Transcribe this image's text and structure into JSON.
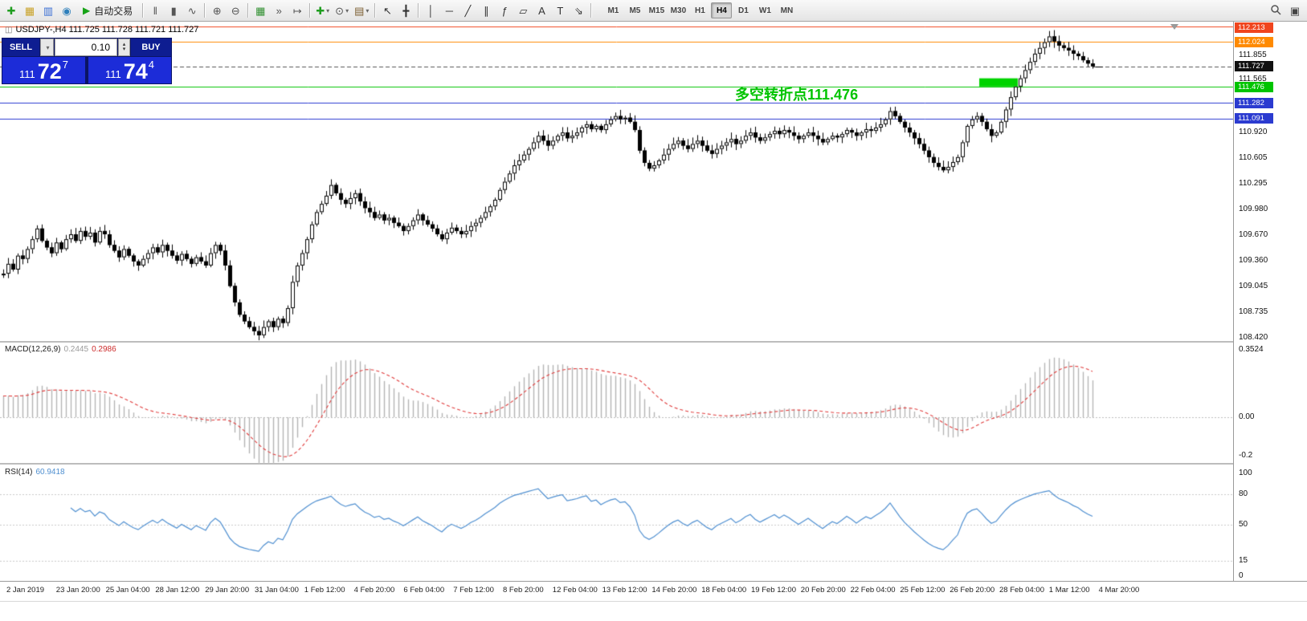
{
  "toolbar": {
    "autotrade_label": "自动交易",
    "groups": [
      {
        "items": [
          {
            "name": "new-order-button",
            "glyph": "✚",
            "color": "#1f9d1f"
          },
          {
            "name": "charts-button",
            "glyph": "▦",
            "color": "#c9a227"
          },
          {
            "name": "market-watch-button",
            "glyph": "▥",
            "color": "#3b6fd4"
          },
          {
            "name": "navigator-button",
            "glyph": "◉",
            "color": "#2e7fbb"
          },
          {
            "name": "autotrading-button",
            "type": "autotrade",
            "glyph": "▶",
            "color": "#17a317"
          }
        ]
      },
      {
        "items": [
          {
            "name": "bar-chart-button",
            "glyph": "‖",
            "color": "#555555"
          },
          {
            "name": "candlestick-chart-button",
            "glyph": "▮",
            "color": "#555555"
          },
          {
            "name": "line-chart-button",
            "glyph": "∿",
            "color": "#555555"
          }
        ]
      },
      {
        "items": [
          {
            "name": "zoom-in-button",
            "glyph": "⊕",
            "color": "#555555"
          },
          {
            "name": "zoom-out-button",
            "glyph": "⊖",
            "color": "#555555"
          }
        ]
      },
      {
        "items": [
          {
            "name": "tile-windows-button",
            "glyph": "▦",
            "color": "#2f8f2f"
          },
          {
            "name": "auto-scroll-button",
            "glyph": "»",
            "color": "#555555"
          },
          {
            "name": "chart-shift-button",
            "glyph": "↦",
            "color": "#555555"
          }
        ]
      },
      {
        "items": [
          {
            "name": "indicators-button",
            "glyph": "✚",
            "color": "#1f9d1f",
            "dropdown": true
          },
          {
            "name": "periods-button",
            "glyph": "⊙",
            "color": "#555555",
            "dropdown": true
          },
          {
            "name": "templates-button",
            "glyph": "▤",
            "color": "#7a5c2e",
            "dropdown": true
          }
        ]
      },
      {
        "items": [
          {
            "name": "cursor-button",
            "glyph": "↖",
            "color": "#333333"
          },
          {
            "name": "crosshair-button",
            "glyph": "╋",
            "color": "#333333"
          }
        ]
      },
      {
        "items": [
          {
            "name": "vertical-line-button",
            "glyph": "│",
            "color": "#333333"
          },
          {
            "name": "horizontal-line-button",
            "glyph": "─",
            "color": "#333333"
          },
          {
            "name": "trendline-button",
            "glyph": "╱",
            "color": "#333333"
          },
          {
            "name": "channel-button",
            "glyph": "∥",
            "color": "#333333"
          },
          {
            "name": "fibonacci-button",
            "glyph": "ƒ",
            "color": "#333333"
          },
          {
            "name": "shapes-button",
            "glyph": "▱",
            "color": "#333333"
          },
          {
            "name": "text-button",
            "glyph": "A",
            "color": "#333333"
          },
          {
            "name": "label-button",
            "glyph": "T",
            "color": "#333333"
          },
          {
            "name": "arrows-button",
            "glyph": "⇘",
            "color": "#333333"
          }
        ]
      }
    ],
    "timeframes": [
      "M1",
      "M5",
      "M15",
      "M30",
      "H1",
      "H4",
      "D1",
      "W1",
      "MN"
    ],
    "active_timeframe": "H4",
    "right_icons": [
      {
        "name": "search-button",
        "glyph": "search"
      },
      {
        "name": "layers-button",
        "glyph": "▣"
      }
    ]
  },
  "chart": {
    "title": "USDJPY-,H4 111.725 111.728 111.721 111.727",
    "annotation": "多空转折点111.476",
    "annotation_color": "#00c400"
  },
  "trade_panel": {
    "sell_label": "SELL",
    "buy_label": "BUY",
    "lot": "0.10",
    "sell_price_prefix": "111",
    "sell_price_big": "72",
    "sell_price_sup": "7",
    "buy_price_prefix": "111",
    "buy_price_big": "74",
    "buy_price_sup": "4"
  },
  "macd": {
    "name": "MACD(12,26,9)",
    "main_value": "0.2445",
    "signal_value": "0.2986",
    "axis": [
      "0.3524",
      "0.00",
      "-0.2"
    ]
  },
  "rsi": {
    "name": "RSI(14)",
    "value": "60.9418",
    "axis": [
      "100",
      "80",
      "50",
      "15",
      "0"
    ]
  },
  "price_axis": {
    "ticks": [
      {
        "label": "112.213",
        "price": 112.213,
        "badge": "#f0451e"
      },
      {
        "label": "112.024",
        "price": 112.024,
        "badge": "#ff8a00"
      },
      {
        "label": "111.855",
        "price": 111.855
      },
      {
        "label": "111.727",
        "price": 111.727,
        "badge": "#111111"
      },
      {
        "label": "111.565",
        "price": 111.565
      },
      {
        "label": "111.476",
        "price": 111.476,
        "badge": "#00c400"
      },
      {
        "label": "111.282",
        "price": 111.282,
        "badge": "#2b3bd0"
      },
      {
        "label": "111.091",
        "price": 111.091,
        "badge": "#2b3bd0"
      },
      {
        "label": "110.920",
        "price": 110.92
      },
      {
        "label": "110.605",
        "price": 110.605
      },
      {
        "label": "110.295",
        "price": 110.295
      },
      {
        "label": "109.980",
        "price": 109.98
      },
      {
        "label": "109.670",
        "price": 109.67
      },
      {
        "label": "109.360",
        "price": 109.36
      },
      {
        "label": "109.045",
        "price": 109.045
      },
      {
        "label": "108.735",
        "price": 108.735
      },
      {
        "label": "108.420",
        "price": 108.42
      }
    ]
  },
  "time_axis": {
    "labels": [
      "2 Jan 2019",
      "23 Jan 20:00",
      "25 Jan 04:00",
      "28 Jan 12:00",
      "29 Jan 20:00",
      "31 Jan 04:00",
      "1 Feb 12:00",
      "4 Feb 20:00",
      "6 Feb 04:00",
      "7 Feb 12:00",
      "8 Feb 20:00",
      "12 Feb 04:00",
      "13 Feb 12:00",
      "14 Feb 20:00",
      "18 Feb 04:00",
      "19 Feb 12:00",
      "20 Feb 20:00",
      "22 Feb 04:00",
      "25 Feb 12:00",
      "26 Feb 20:00",
      "28 Feb 04:00",
      "1 Mar 12:00",
      "4 Mar 20:00"
    ]
  },
  "chart_data": {
    "type": "candlestick",
    "symbol": "USDJPY-",
    "timeframe": "H4",
    "price_axis": {
      "max": 112.27,
      "min": 108.38
    },
    "closes": [
      109.2,
      109.32,
      109.25,
      109.42,
      109.38,
      109.5,
      109.62,
      109.75,
      109.6,
      109.52,
      109.45,
      109.58,
      109.5,
      109.62,
      109.68,
      109.6,
      109.72,
      109.65,
      109.7,
      109.58,
      109.72,
      109.68,
      109.55,
      109.48,
      109.4,
      109.5,
      109.42,
      109.35,
      109.3,
      109.38,
      109.45,
      109.52,
      109.46,
      109.55,
      109.48,
      109.42,
      109.36,
      109.44,
      109.38,
      109.32,
      109.4,
      109.35,
      109.3,
      109.45,
      109.55,
      109.48,
      109.3,
      109.05,
      108.85,
      108.7,
      108.62,
      108.55,
      108.5,
      108.45,
      108.55,
      108.62,
      108.55,
      108.65,
      108.6,
      108.78,
      109.1,
      109.3,
      109.45,
      109.62,
      109.8,
      109.95,
      110.05,
      110.15,
      110.28,
      110.18,
      110.1,
      110.05,
      110.12,
      110.18,
      110.08,
      110.0,
      109.95,
      109.88,
      109.92,
      109.85,
      109.88,
      109.82,
      109.78,
      109.72,
      109.78,
      109.85,
      109.92,
      109.85,
      109.8,
      109.75,
      109.68,
      109.62,
      109.7,
      109.76,
      109.72,
      109.68,
      109.72,
      109.78,
      109.82,
      109.88,
      109.95,
      110.02,
      110.1,
      110.22,
      110.32,
      110.42,
      110.52,
      110.58,
      110.65,
      110.72,
      110.8,
      110.88,
      110.82,
      110.76,
      110.82,
      110.88,
      110.92,
      110.85,
      110.88,
      110.92,
      110.98,
      111.02,
      110.96,
      111.0,
      110.95,
      111.02,
      111.08,
      111.12,
      111.08,
      111.1,
      111.05,
      110.95,
      110.7,
      110.55,
      110.48,
      110.52,
      110.58,
      110.65,
      110.72,
      110.78,
      110.82,
      110.76,
      110.72,
      110.78,
      110.82,
      110.76,
      110.7,
      110.66,
      110.72,
      110.76,
      110.8,
      110.84,
      110.78,
      110.82,
      110.88,
      110.92,
      110.86,
      110.82,
      110.86,
      110.9,
      110.94,
      110.9,
      110.95,
      110.92,
      110.88,
      110.84,
      110.88,
      110.92,
      110.88,
      110.84,
      110.8,
      110.84,
      110.88,
      110.86,
      110.9,
      110.95,
      110.92,
      110.88,
      110.92,
      110.96,
      110.94,
      110.98,
      111.02,
      111.08,
      111.18,
      111.12,
      111.05,
      110.98,
      110.92,
      110.85,
      110.78,
      110.7,
      110.62,
      110.55,
      110.5,
      110.46,
      110.5,
      110.56,
      110.62,
      110.8,
      111.0,
      111.08,
      111.12,
      111.05,
      110.96,
      110.88,
      110.92,
      111.05,
      111.2,
      111.35,
      111.48,
      111.58,
      111.68,
      111.78,
      111.88,
      111.95,
      112.02,
      112.09,
      112.03,
      111.98,
      111.95,
      111.92,
      111.88,
      111.85,
      111.8,
      111.76,
      111.727
    ],
    "levels": [
      {
        "price": 112.213,
        "color": "#f0451e",
        "style": "solid"
      },
      {
        "price": 112.024,
        "color": "#ff8a00",
        "style": "solid"
      },
      {
        "price": 111.727,
        "color": "#555555",
        "style": "dash"
      },
      {
        "price": 111.476,
        "color": "#00c400",
        "style": "solid"
      },
      {
        "price": 111.282,
        "color": "#2b3bd0",
        "style": "solid"
      },
      {
        "price": 111.091,
        "color": "#2b3bd0",
        "style": "solid"
      }
    ],
    "green_box": {
      "i0": 203,
      "i1": 210,
      "p0": 111.48,
      "p1": 111.58,
      "color": "#00d300"
    },
    "indicators": {
      "macd": {
        "params": [
          12,
          26,
          9
        ],
        "display_main": 0.2445,
        "display_signal": 0.2986,
        "axis_max": 0.3524
      },
      "rsi": {
        "params": [
          14
        ],
        "display_value": 60.9418,
        "levels": [
          80,
          50,
          15
        ]
      }
    }
  }
}
